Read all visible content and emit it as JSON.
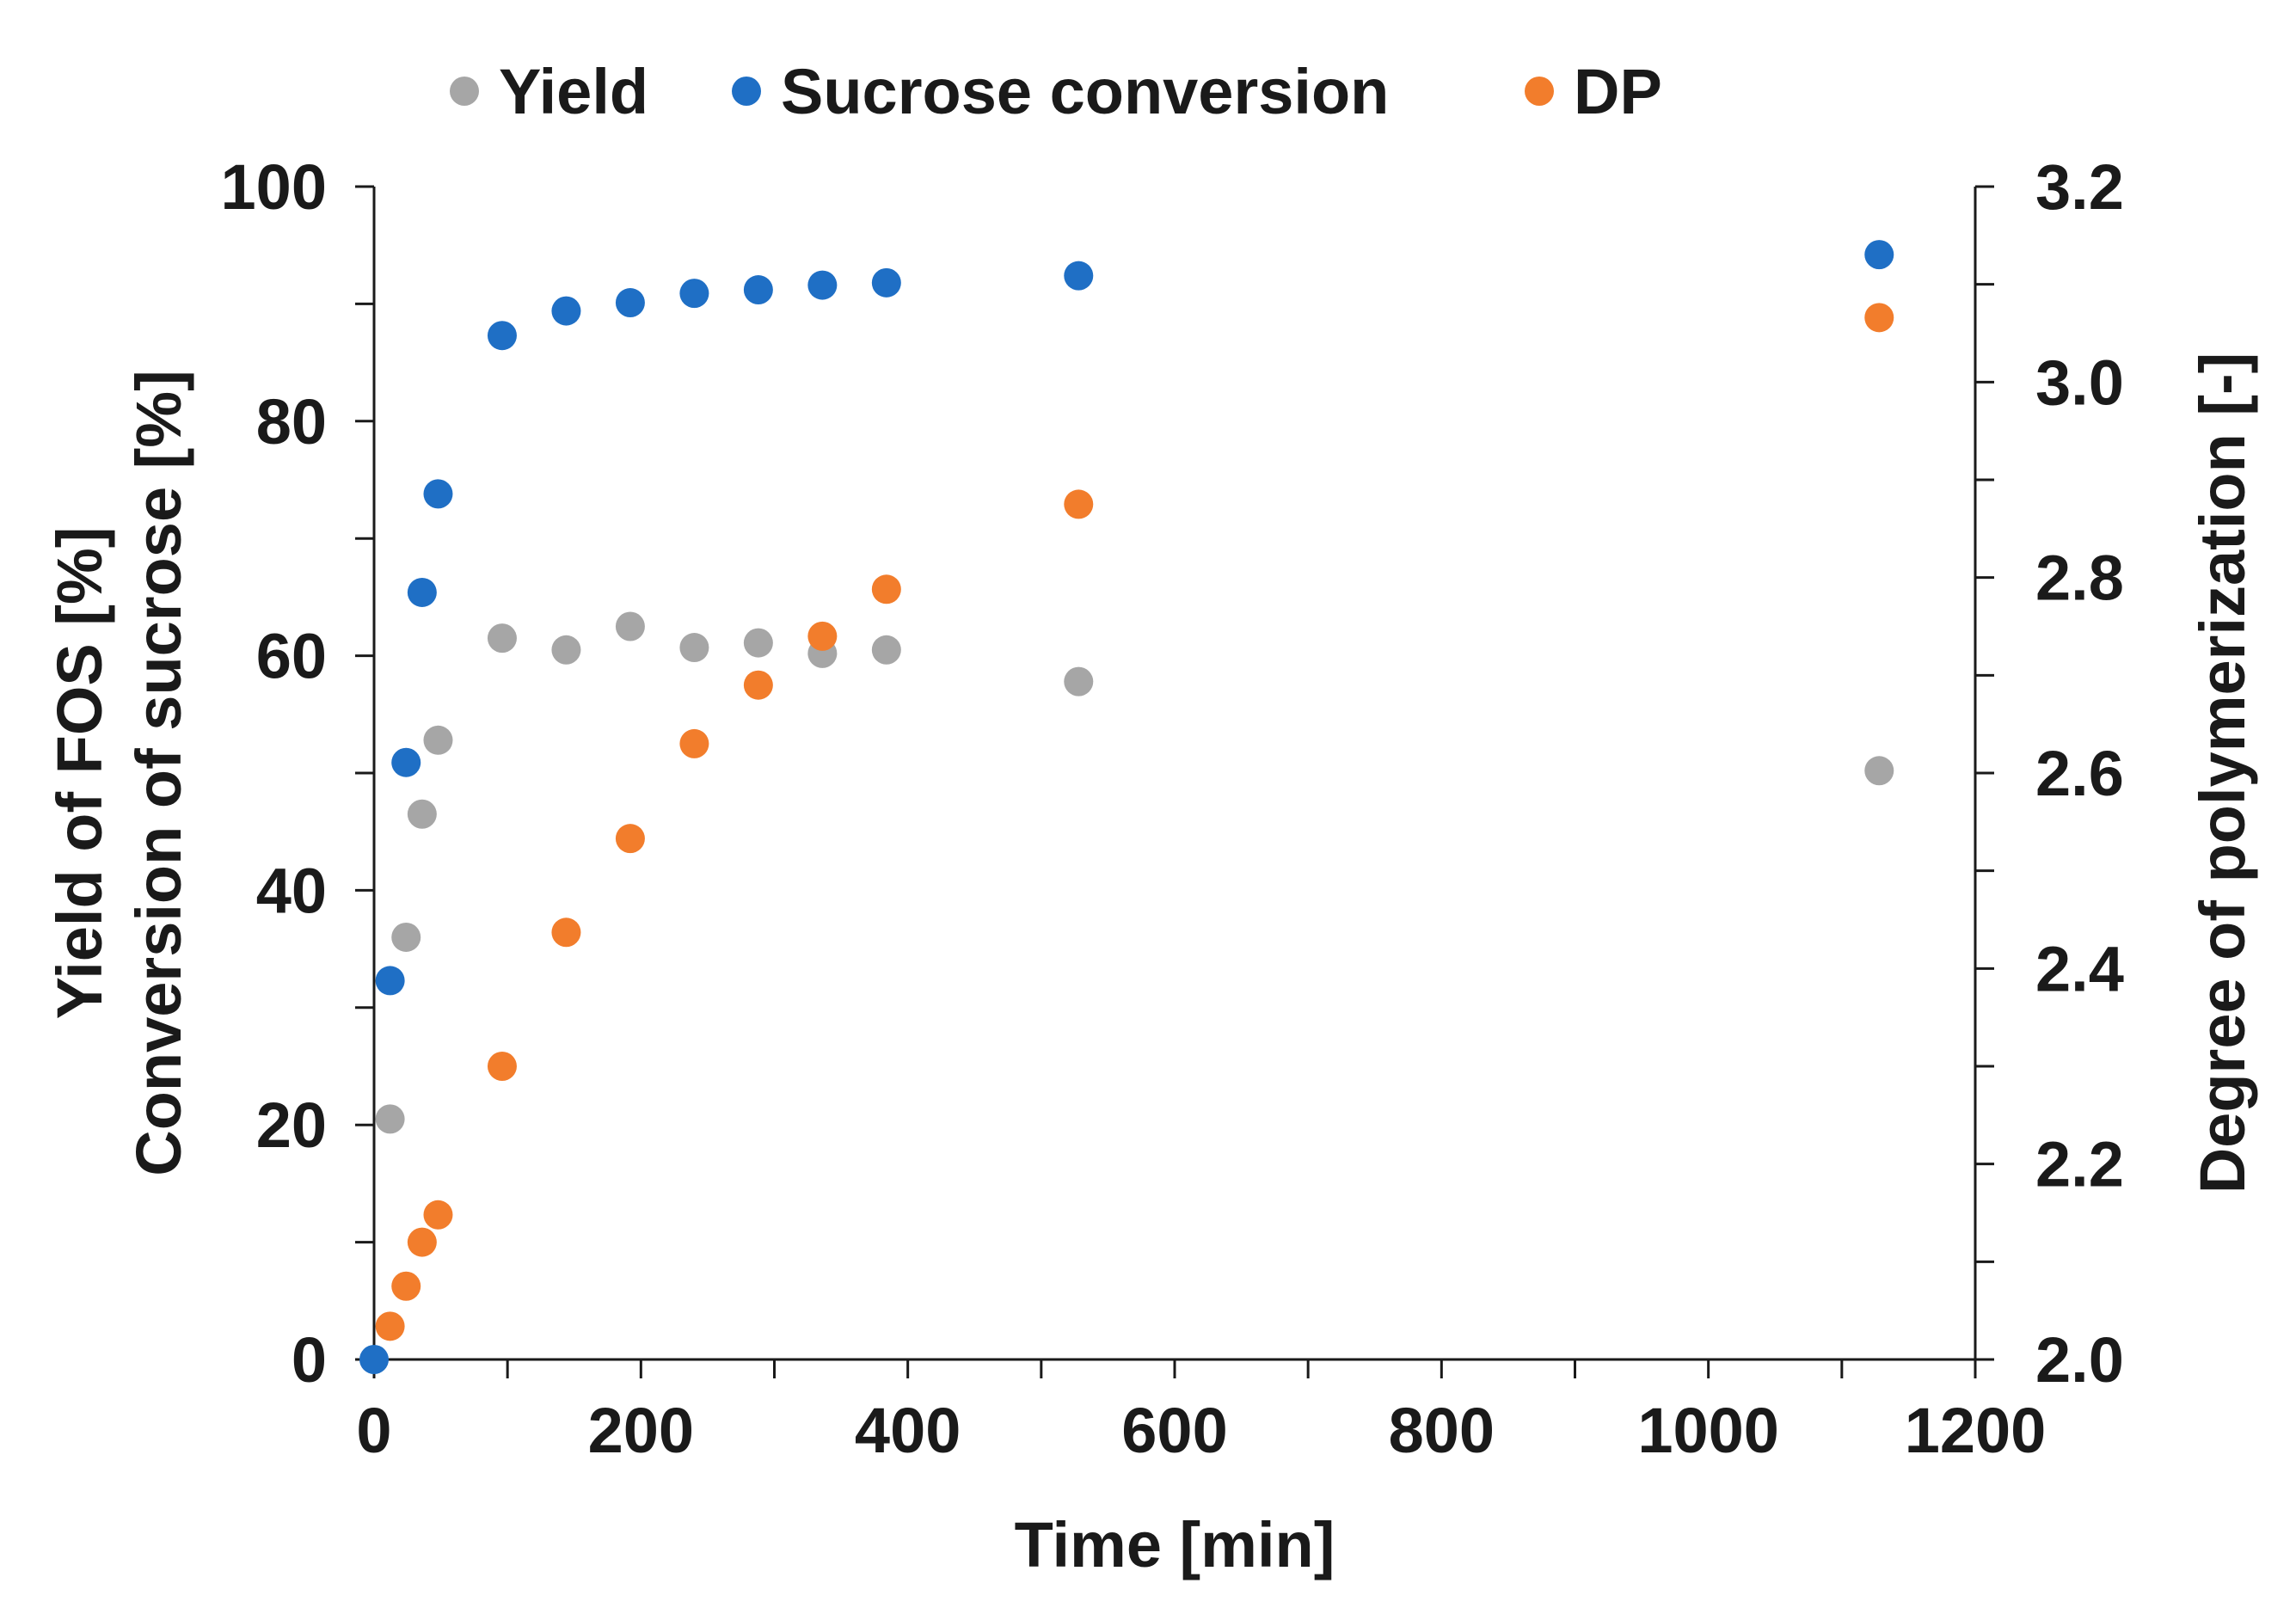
{
  "chart_data": {
    "type": "scatter",
    "title": "",
    "xlabel": "Time [min]",
    "ylabel_left": [
      "Yield of FOS [%]",
      "Conversion of sucrose [%]"
    ],
    "ylabel_right": "Degree of polymerization [-]",
    "xlim": [
      0,
      1200
    ],
    "ylim_left": [
      0,
      100
    ],
    "ylim_right": [
      2.0,
      3.2
    ],
    "x_ticks": [
      "0",
      "200",
      "400",
      "600",
      "800",
      "1000",
      "1200"
    ],
    "y_left_ticks": [
      "0",
      "20",
      "40",
      "60",
      "80",
      "100"
    ],
    "y_right_ticks": [
      "2.0",
      "2.2",
      "2.4",
      "2.6",
      "2.8",
      "3.0",
      "3.2"
    ],
    "grid": false,
    "legend_position": "top",
    "series": [
      {
        "name": "Yield",
        "color": "#a6a6a6",
        "axis": "left",
        "x": [
          12,
          24,
          36,
          48,
          96,
          144,
          192,
          240,
          288,
          336,
          384,
          528,
          1128
        ],
        "y": [
          20.5,
          36,
          46.5,
          52.8,
          61.5,
          60.5,
          62.5,
          60.7,
          61.1,
          60.2,
          60.5,
          57.8,
          50.2
        ]
      },
      {
        "name": "Sucrose conversion",
        "color": "#1f6fc5",
        "axis": "left",
        "x": [
          0,
          12,
          24,
          36,
          48,
          96,
          144,
          192,
          240,
          288,
          336,
          384,
          528,
          1128
        ],
        "y": [
          0,
          32.3,
          50.9,
          65.4,
          73.8,
          87.3,
          89.4,
          90.1,
          90.9,
          91.2,
          91.6,
          91.8,
          92.4,
          94.2
        ]
      },
      {
        "name": "DP",
        "color": "#f27d2c",
        "axis": "right",
        "x": [
          12,
          24,
          36,
          48,
          96,
          144,
          192,
          240,
          288,
          336,
          384,
          528,
          1128
        ],
        "y": [
          2.034,
          2.075,
          2.12,
          2.148,
          2.3,
          2.437,
          2.533,
          2.63,
          2.69,
          2.74,
          2.788,
          2.875,
          3.066
        ]
      }
    ]
  }
}
